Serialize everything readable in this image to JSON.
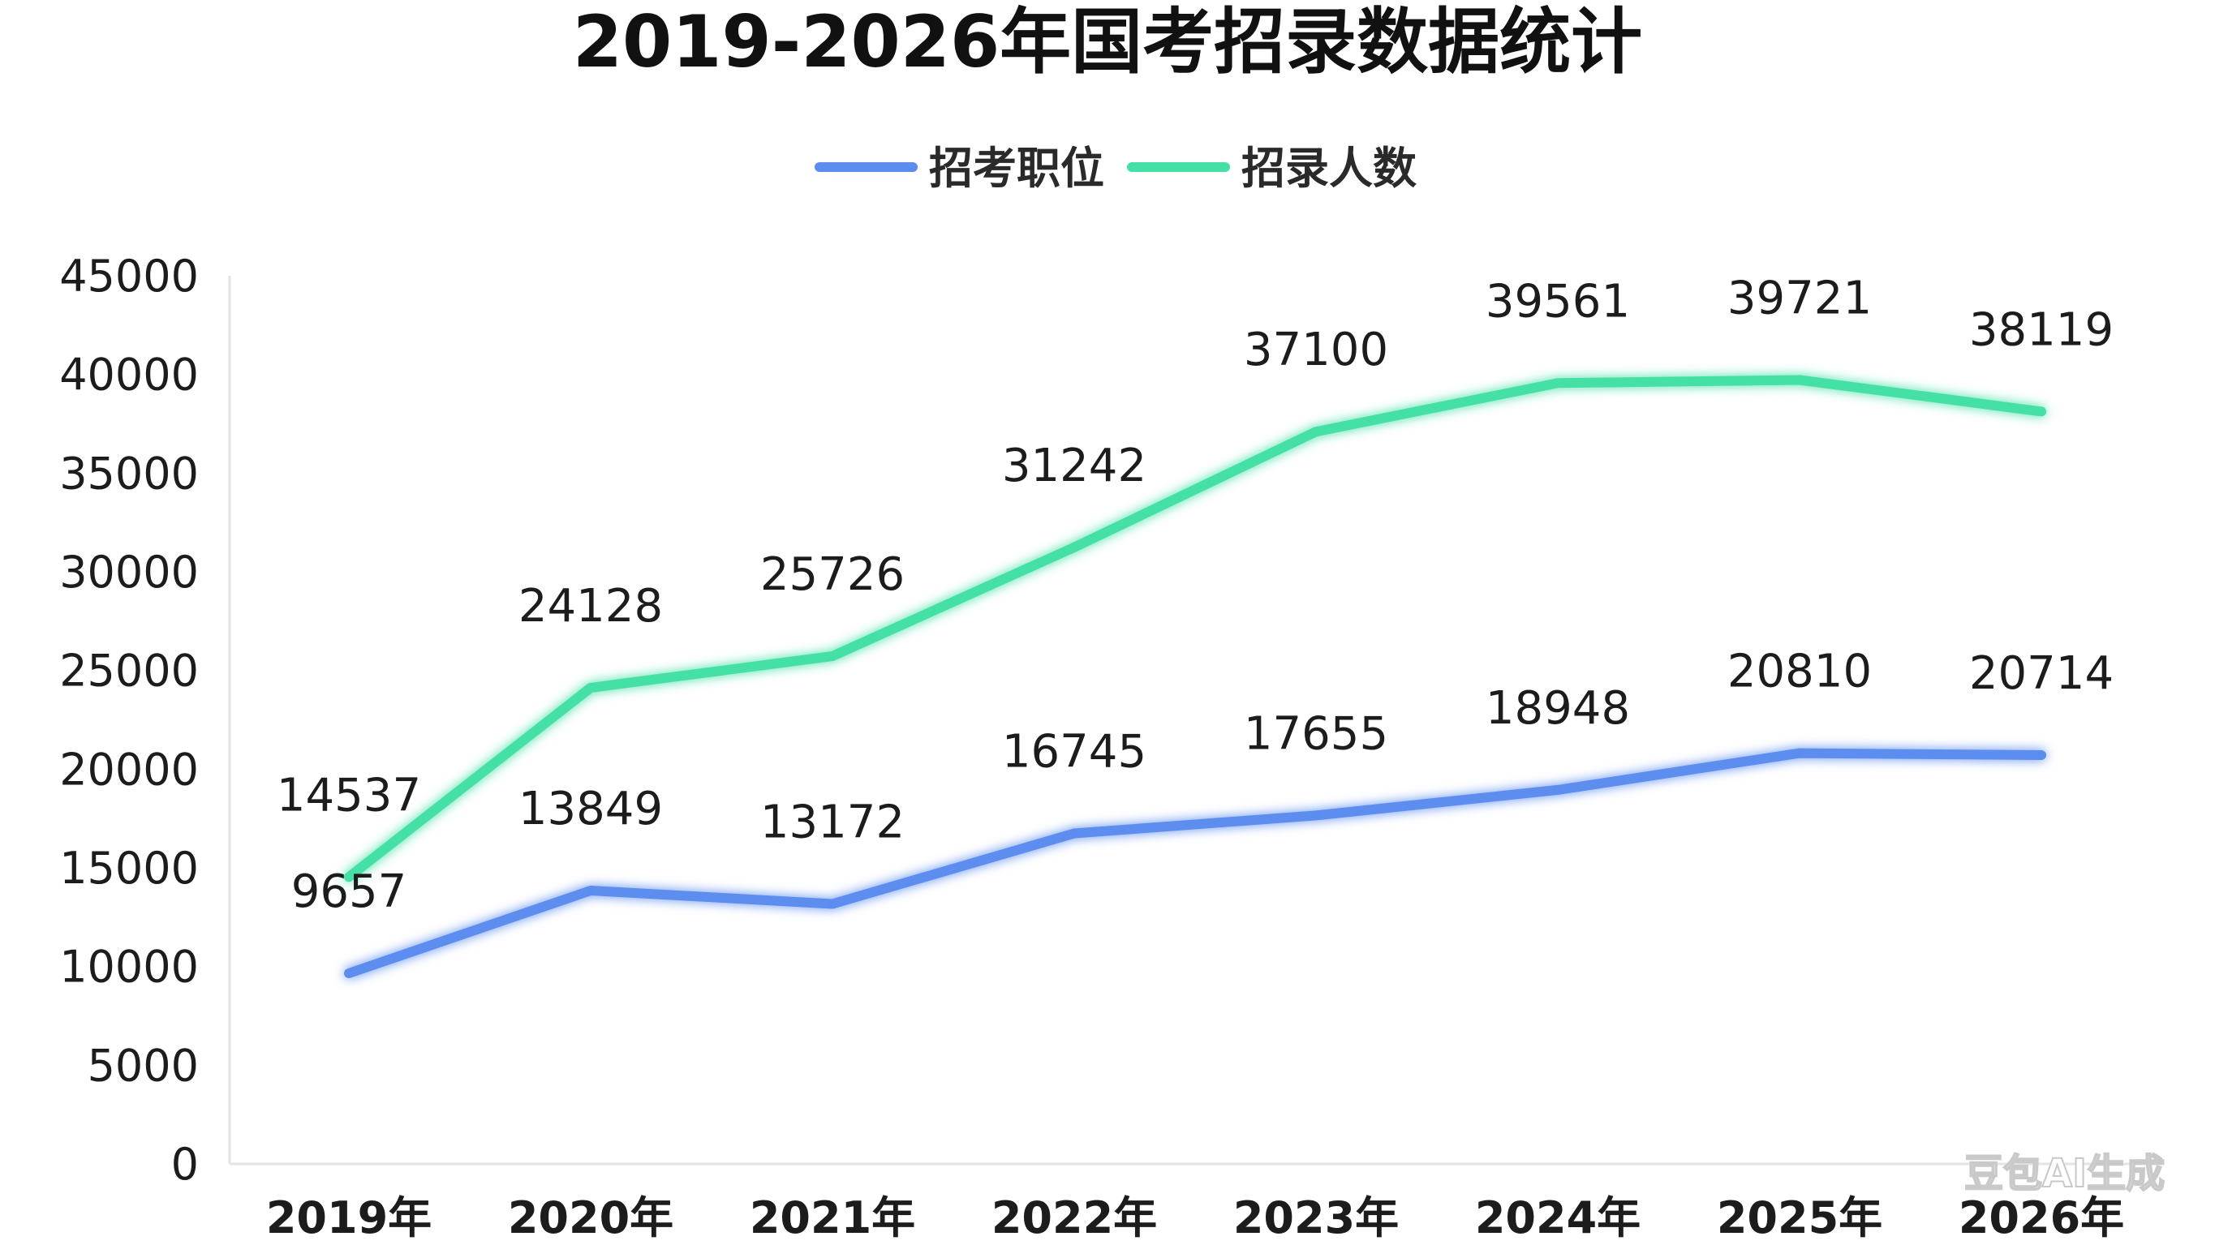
{
  "chart_data": {
    "type": "line",
    "title": "2019-2026年国考招录数据统计",
    "categories": [
      "2019年",
      "2020年",
      "2021年",
      "2022年",
      "2023年",
      "2024年",
      "2025年",
      "2026年"
    ],
    "series": [
      {
        "name": "招考职位",
        "color": "#5b8def",
        "values": [
          9657,
          13849,
          13172,
          16745,
          17655,
          18948,
          20810,
          20714
        ]
      },
      {
        "name": "招录人数",
        "color": "#45e0a6",
        "values": [
          14537,
          24128,
          25726,
          31242,
          37100,
          39561,
          39721,
          38119
        ]
      }
    ],
    "yticks": [
      "0",
      "5000",
      "10000",
      "15000",
      "20000",
      "25000",
      "30000",
      "35000",
      "40000",
      "45000"
    ],
    "ylim": [
      0,
      45000
    ],
    "legend_position": "top-center",
    "grid": false,
    "xlabel": "",
    "ylabel": ""
  },
  "watermark": "豆包AI生成"
}
